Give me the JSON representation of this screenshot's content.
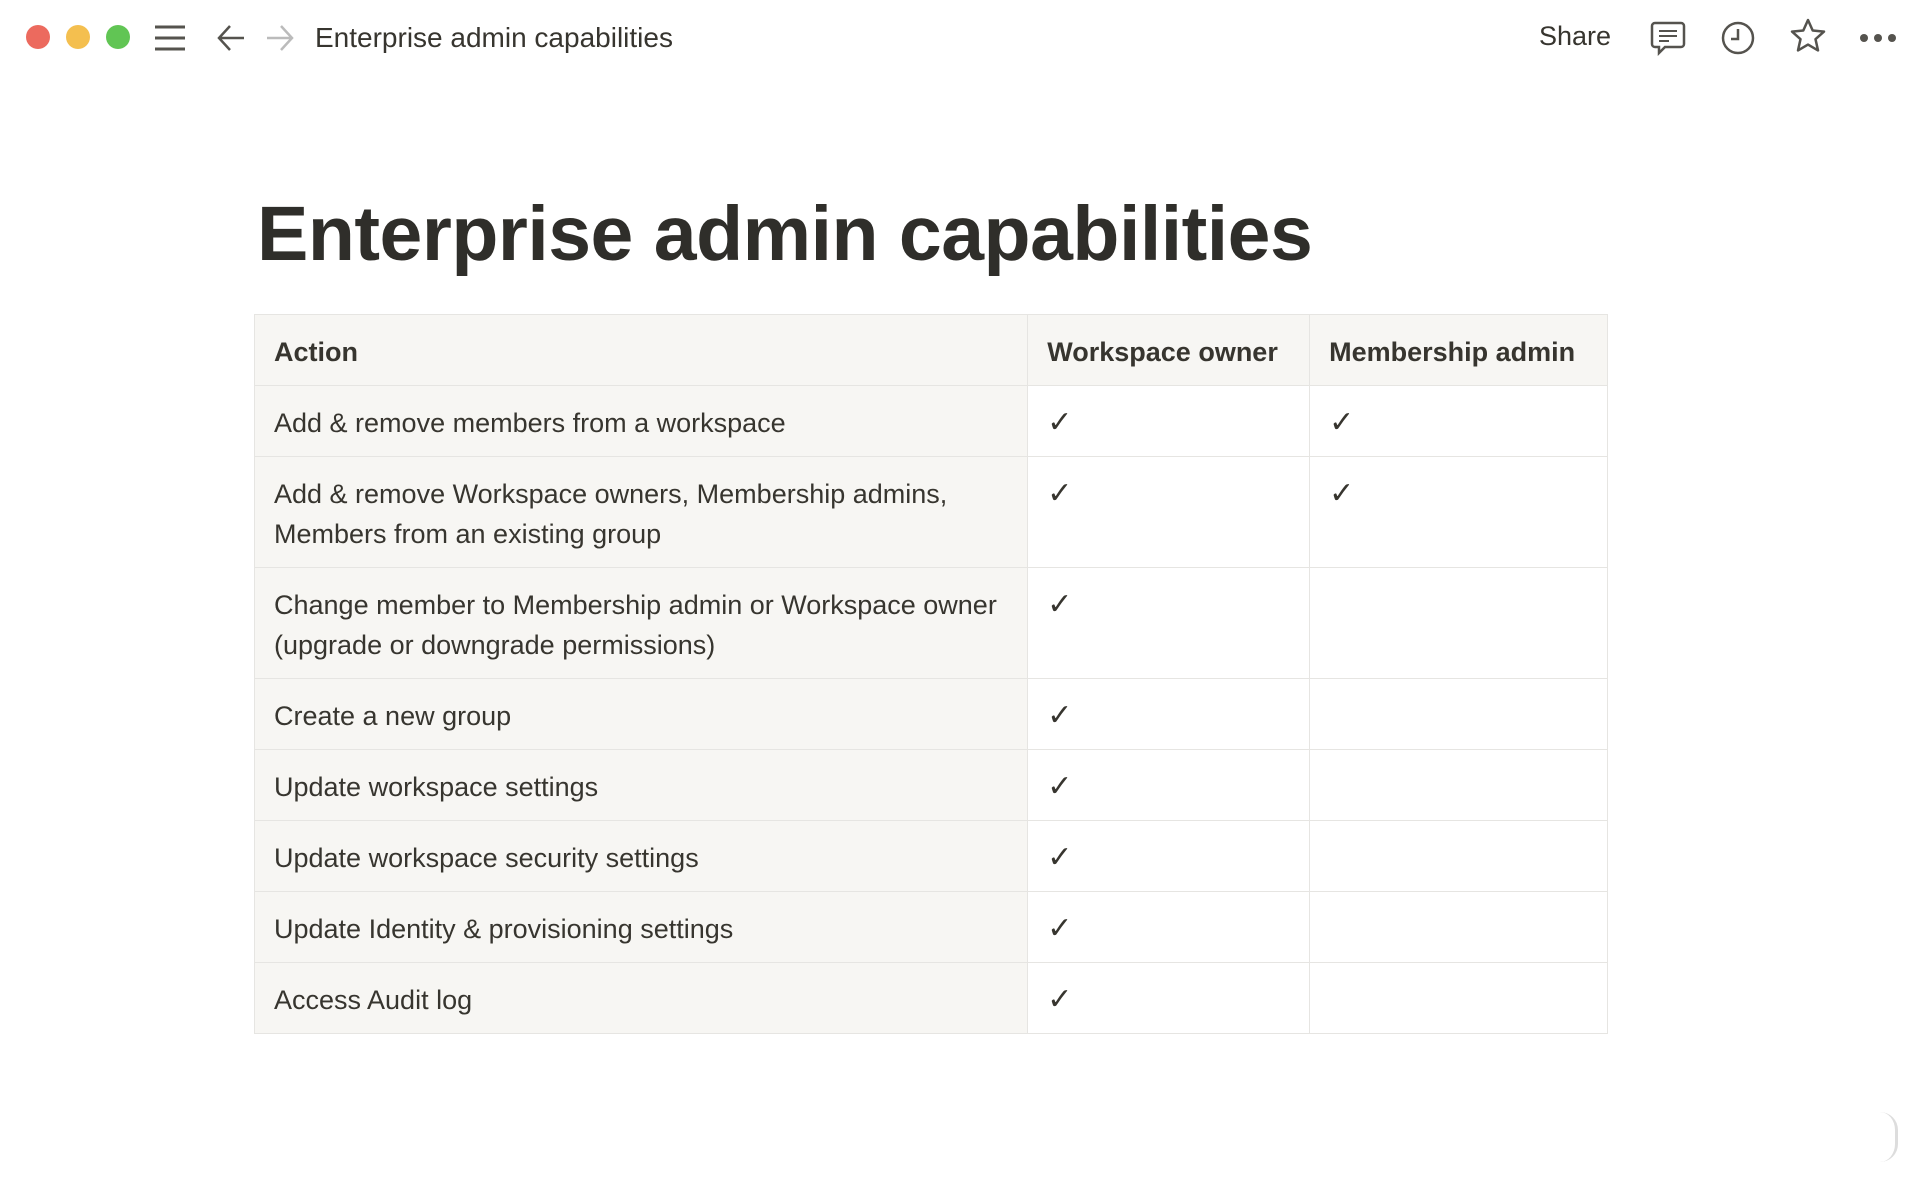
{
  "window": {
    "controls": {
      "close_color": "#ec6a5e",
      "minimize_color": "#f4bf4f",
      "maximize_color": "#61c554"
    }
  },
  "topbar": {
    "breadcrumb": "Enterprise admin capabilities",
    "share_label": "Share",
    "icons": [
      "menu-icon",
      "back-arrow-icon",
      "forward-arrow-icon",
      "comment-icon",
      "clock-icon",
      "star-icon",
      "more-icon"
    ]
  },
  "page": {
    "title": "Enterprise admin capabilities"
  },
  "table": {
    "headers": [
      "Action",
      "Workspace owner",
      "Membership admin"
    ],
    "check_glyph": "✓",
    "rows": [
      {
        "action": "Add & remove members from a workspace",
        "owner": true,
        "admin": true
      },
      {
        "action": "Add & remove Workspace owners, Membership admins, Members from an existing group",
        "owner": true,
        "admin": true
      },
      {
        "action": "Change member to Membership admin or Workspace owner (upgrade or downgrade permissions)",
        "owner": true,
        "admin": false
      },
      {
        "action": "Create a new group",
        "owner": true,
        "admin": false
      },
      {
        "action": "Update workspace settings",
        "owner": true,
        "admin": false
      },
      {
        "action": "Update workspace security settings",
        "owner": true,
        "admin": false
      },
      {
        "action": "Update Identity & provisioning settings",
        "owner": true,
        "admin": false
      },
      {
        "action": "Access Audit log",
        "owner": true,
        "admin": false
      }
    ]
  }
}
